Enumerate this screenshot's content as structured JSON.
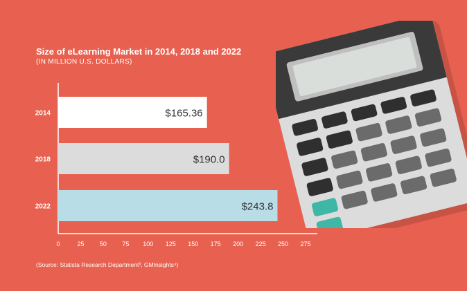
{
  "chart_data": {
    "type": "bar",
    "orientation": "horizontal",
    "title": "Size of eLearning Market in 2014, 2018 and 2022",
    "subtitle": "(IN MILLION U.S. DOLLARS)",
    "categories": [
      "2014",
      "2018",
      "2022"
    ],
    "values": [
      165.36,
      190.0,
      243.8
    ],
    "value_labels": [
      "$165.36",
      "$190.0",
      "$243.8"
    ],
    "bar_colors": [
      "#ffffff",
      "#dcdcdc",
      "#b8dde6"
    ],
    "xlim": [
      0,
      275
    ],
    "xticks": [
      "0",
      "25",
      "50",
      "75",
      "100",
      "125",
      "150",
      "175",
      "200",
      "225",
      "250",
      "275"
    ],
    "grid": false,
    "source": "(Source: Statista Research Department³, GMInsights⁴)"
  },
  "colors": {
    "background": "#e8604f",
    "axis": "#ffffff",
    "label_text": "#333333"
  },
  "decoration": {
    "illustration": "calculator-icon"
  }
}
